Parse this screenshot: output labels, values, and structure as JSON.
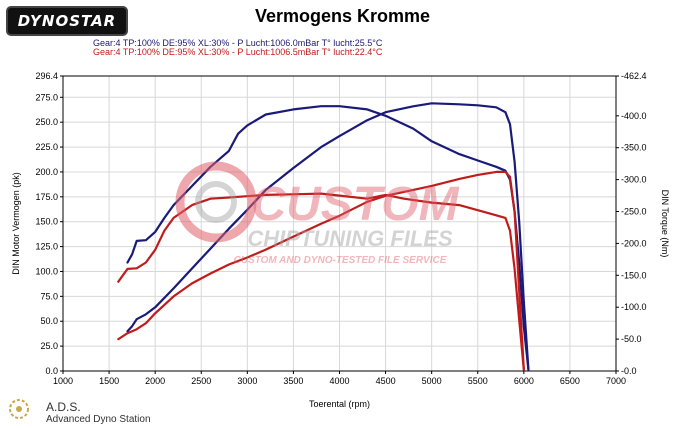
{
  "header": {
    "logo_text": "DYNOSTAR",
    "title": "Vermogens Kromme",
    "run1_conditions": "Gear:4 TP:100% DE:95% XL:30%   - P Lucht:1006.0mBar T° lucht:25.5°C",
    "run2_conditions": "Gear:4 TP:100% DE:95% XL:30%   - P Lucht:1006.5mBar T° lucht:22.4°C"
  },
  "watermark": {
    "line1": "CUSTOM",
    "line2": "CHIPTUNING FILES",
    "line3": "CUSTOM AND DYNO-TESTED FILE SERVICE"
  },
  "footer": {
    "brand": "A.D.S.",
    "subtitle": "Advanced Dyno Station"
  },
  "colors": {
    "run1": "#1a1a7a",
    "run2": "#c01c1c",
    "grid": "#d8d8d8",
    "watermark_red": "#e0606a",
    "watermark_grey": "#a0a0a0"
  },
  "chart_data": {
    "type": "line",
    "title": "Vermogens Kromme",
    "xlabel": "Toerental (rpm)",
    "ylabel_left": "DIN Motor Vermogen (pk)",
    "ylabel_right": "DIN Torque (Nm)",
    "xlim": [
      1000,
      7000
    ],
    "ylim_left": [
      0,
      296.4
    ],
    "ylim_right": [
      0,
      462.4
    ],
    "x_ticks": [
      1000,
      1500,
      2000,
      2500,
      3000,
      3500,
      4000,
      4500,
      5000,
      5500,
      6000,
      6500,
      7000
    ],
    "y_left_ticks": [
      "0.0",
      "25.0",
      "50.0",
      "75.0",
      "100.0",
      "125.0",
      "150.0",
      "175.0",
      "200.0",
      "225.0",
      "250.0",
      "275.0",
      "296.4"
    ],
    "y_right_ticks": [
      "0.0",
      "50.0",
      "100.0",
      "150.0",
      "200.0",
      "250.0",
      "300.0",
      "350.0",
      "400.0",
      "462.4"
    ],
    "y_left_tick_values": [
      0,
      25,
      50,
      75,
      100,
      125,
      150,
      175,
      200,
      225,
      250,
      275,
      296.4
    ],
    "y_right_tick_values": [
      0,
      50,
      100,
      150,
      200,
      250,
      300,
      350,
      400,
      462.4
    ],
    "grid": true,
    "series": [
      {
        "run": 1,
        "quantity": "power",
        "axis": "left",
        "color": "#1a1a7a",
        "x": [
          1700,
          1750,
          1800,
          1900,
          2000,
          2200,
          2400,
          2600,
          2800,
          3000,
          3200,
          3500,
          3800,
          4000,
          4300,
          4500,
          4800,
          5000,
          5300,
          5500,
          5700,
          5800,
          5850,
          5900,
          5950,
          6000,
          6050
        ],
        "y": [
          40,
          45,
          52,
          57,
          64,
          83,
          103,
          123,
          143,
          162,
          182,
          204,
          225,
          236,
          252,
          260,
          266,
          269,
          268,
          267,
          265,
          260,
          248,
          210,
          150,
          70,
          2
        ]
      },
      {
        "run": 1,
        "quantity": "torque",
        "axis": "right",
        "color": "#1a1a7a",
        "x": [
          1700,
          1750,
          1800,
          1900,
          2000,
          2100,
          2200,
          2400,
          2600,
          2800,
          2900,
          3000,
          3200,
          3500,
          3800,
          4000,
          4300,
          4500,
          4800,
          5000,
          5300,
          5500,
          5700,
          5800,
          5850,
          5900,
          5950,
          6000,
          6050
        ],
        "y": [
          170,
          183,
          204,
          205,
          218,
          240,
          260,
          290,
          320,
          345,
          372,
          385,
          402,
          410,
          415,
          415,
          410,
          400,
          380,
          360,
          340,
          330,
          320,
          314,
          300,
          250,
          170,
          70,
          2
        ]
      },
      {
        "run": 2,
        "quantity": "power",
        "axis": "left",
        "color": "#c01c1c",
        "x": [
          1600,
          1700,
          1800,
          1900,
          2000,
          2200,
          2400,
          2600,
          2800,
          3000,
          3200,
          3500,
          3800,
          4000,
          4300,
          4500,
          4800,
          5000,
          5300,
          5500,
          5700,
          5800,
          5850,
          5900,
          5950,
          6000
        ],
        "y": [
          32,
          38,
          42,
          48,
          58,
          75,
          88,
          98,
          107,
          114,
          122,
          135,
          148,
          156,
          170,
          176,
          182,
          186,
          193,
          197,
          200,
          200,
          195,
          160,
          80,
          2
        ]
      },
      {
        "run": 2,
        "quantity": "torque",
        "axis": "right",
        "color": "#c01c1c",
        "x": [
          1600,
          1700,
          1800,
          1900,
          2000,
          2100,
          2200,
          2400,
          2600,
          2800,
          3000,
          3200,
          3500,
          3800,
          4000,
          4300,
          4500,
          4700,
          5000,
          5300,
          5500,
          5700,
          5800,
          5850,
          5900,
          5950,
          6000
        ],
        "y": [
          140,
          160,
          161,
          170,
          190,
          220,
          240,
          260,
          270,
          272,
          274,
          276,
          277,
          278,
          275,
          270,
          276,
          270,
          264,
          260,
          252,
          244,
          240,
          220,
          160,
          80,
          2
        ]
      }
    ]
  }
}
